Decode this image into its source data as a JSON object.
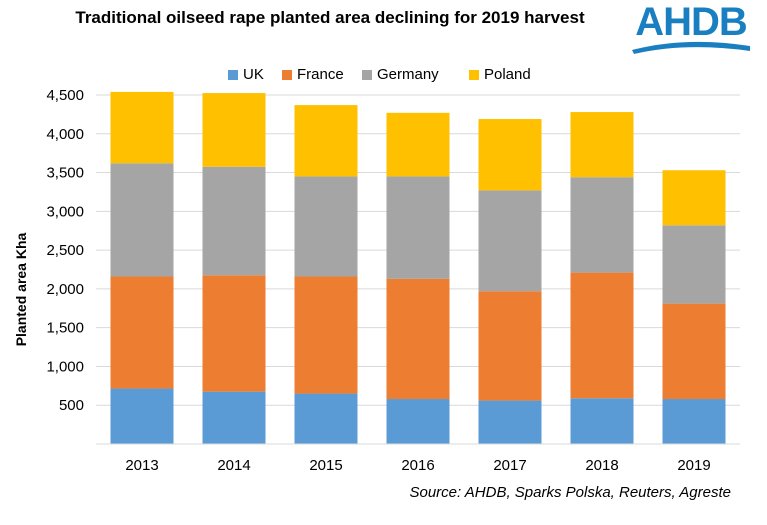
{
  "chart_data": {
    "type": "bar",
    "stacked": true,
    "title": "Traditional oilseed rape planted area declining for 2019 harvest",
    "ylabel": "Planted area Kha",
    "xlabel": "",
    "ylim": [
      0,
      4500
    ],
    "yticks": [
      "500",
      "1,000",
      "1,500",
      "2,000",
      "2,500",
      "3,000",
      "3,500",
      "4,000",
      "4,500"
    ],
    "ytick_values": [
      500,
      1000,
      1500,
      2000,
      2500,
      3000,
      3500,
      4000,
      4500
    ],
    "grid": true,
    "legend_position": "top",
    "categories": [
      "2013",
      "2014",
      "2015",
      "2016",
      "2017",
      "2018",
      "2019"
    ],
    "series": [
      {
        "name": "UK",
        "color": "#5b9bd5",
        "values": [
          715,
          675,
          650,
          580,
          560,
          590,
          580
        ]
      },
      {
        "name": "France",
        "color": "#ed7d31",
        "values": [
          1445,
          1500,
          1510,
          1550,
          1410,
          1620,
          1230
        ]
      },
      {
        "name": "Germany",
        "color": "#a5a5a5",
        "values": [
          1460,
          1400,
          1290,
          1320,
          1300,
          1230,
          1010
        ]
      },
      {
        "name": "Poland",
        "color": "#ffc000",
        "values": [
          920,
          950,
          920,
          820,
          920,
          840,
          710
        ]
      }
    ]
  },
  "logo": {
    "text": "AHDB",
    "color": "#1a7fc1"
  },
  "source": "Source: AHDB, Sparks Polska, Reuters, Agreste"
}
